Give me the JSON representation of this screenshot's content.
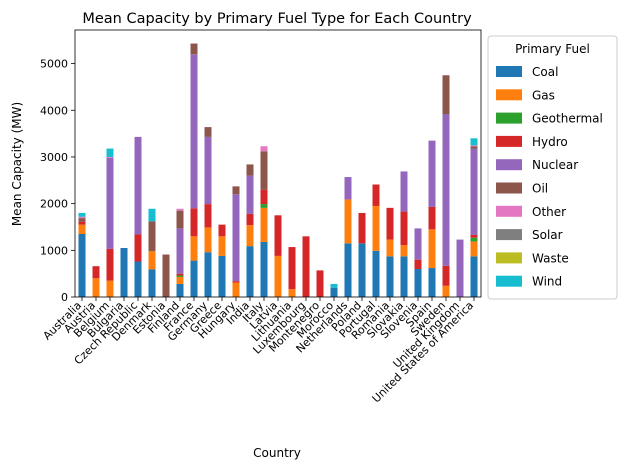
{
  "chart_data": {
    "type": "bar",
    "stacked": true,
    "title": "Mean Capacity by Primary Fuel Type for Each Country",
    "xlabel": "Country",
    "ylabel": "Mean Capacity (MW)",
    "ylim": [
      0,
      5720
    ],
    "yticks": [
      0,
      1000,
      2000,
      3000,
      4000,
      5000
    ],
    "legend_title": "Primary Fuel",
    "legend_position": "outside-right",
    "categories": [
      "Australia",
      "Austria",
      "Belgium",
      "Bulgaria",
      "Czech Republic",
      "Denmark",
      "Estonia",
      "Finland",
      "France",
      "Germany",
      "Greece",
      "Hungary",
      "India",
      "Italy",
      "Latvia",
      "Lithuania",
      "Luxembourg",
      "Montenegro",
      "Morocco",
      "Netherlands",
      "Poland",
      "Portugal",
      "Romania",
      "Slovakia",
      "Slovenia",
      "Spain",
      "Sweden",
      "United Kingdom",
      "United States of America"
    ],
    "series": [
      {
        "name": "Coal",
        "color": "#1f77b4",
        "values": [
          1350,
          0,
          0,
          1050,
          760,
          590,
          0,
          280,
          780,
          960,
          880,
          0,
          1090,
          1180,
          0,
          0,
          0,
          0,
          200,
          1150,
          1150,
          990,
          870,
          870,
          600,
          620,
          0,
          0,
          870
        ]
      },
      {
        "name": "Gas",
        "color": "#ff7f0e",
        "values": [
          200,
          400,
          350,
          0,
          0,
          390,
          0,
          150,
          520,
          530,
          420,
          310,
          450,
          730,
          880,
          170,
          0,
          0,
          0,
          940,
          0,
          960,
          360,
          240,
          0,
          830,
          240,
          0,
          320
        ]
      },
      {
        "name": "Geothermal",
        "color": "#2ca02c",
        "values": [
          0,
          0,
          0,
          0,
          0,
          0,
          0,
          30,
          0,
          0,
          0,
          0,
          0,
          80,
          0,
          0,
          0,
          0,
          0,
          0,
          0,
          0,
          0,
          0,
          0,
          0,
          0,
          0,
          80
        ]
      },
      {
        "name": "Hydro",
        "color": "#d62728",
        "values": [
          60,
          260,
          680,
          0,
          580,
          0,
          0,
          40,
          600,
          500,
          250,
          30,
          240,
          310,
          870,
          900,
          1300,
          570,
          0,
          0,
          650,
          460,
          680,
          720,
          200,
          480,
          430,
          0,
          60
        ]
      },
      {
        "name": "Nuclear",
        "color": "#9467bd",
        "values": [
          0,
          0,
          1950,
          0,
          2090,
          0,
          0,
          970,
          3300,
          1440,
          0,
          1860,
          820,
          0,
          0,
          0,
          0,
          0,
          0,
          480,
          0,
          0,
          0,
          860,
          670,
          1420,
          3250,
          1230,
          1850
        ]
      },
      {
        "name": "Oil",
        "color": "#8c564b",
        "values": [
          80,
          0,
          0,
          0,
          0,
          640,
          910,
          380,
          230,
          210,
          0,
          170,
          240,
          820,
          0,
          0,
          0,
          0,
          0,
          0,
          0,
          0,
          0,
          0,
          0,
          0,
          830,
          0,
          50
        ]
      },
      {
        "name": "Other",
        "color": "#e377c2",
        "values": [
          30,
          0,
          20,
          0,
          0,
          0,
          0,
          40,
          0,
          0,
          0,
          0,
          0,
          110,
          0,
          0,
          0,
          0,
          0,
          0,
          0,
          0,
          0,
          0,
          0,
          0,
          0,
          0,
          20
        ]
      },
      {
        "name": "Solar",
        "color": "#7f7f7f",
        "values": [
          0,
          0,
          0,
          0,
          0,
          0,
          0,
          0,
          0,
          0,
          0,
          0,
          0,
          0,
          0,
          0,
          0,
          0,
          0,
          0,
          0,
          0,
          0,
          0,
          0,
          0,
          0,
          0,
          0
        ]
      },
      {
        "name": "Waste",
        "color": "#bcbd22",
        "values": [
          0,
          0,
          0,
          0,
          0,
          0,
          0,
          0,
          0,
          0,
          0,
          0,
          0,
          0,
          0,
          0,
          0,
          0,
          0,
          0,
          0,
          0,
          0,
          0,
          0,
          0,
          0,
          0,
          0
        ]
      },
      {
        "name": "Wind",
        "color": "#17becf",
        "values": [
          80,
          0,
          180,
          0,
          0,
          270,
          0,
          0,
          0,
          0,
          0,
          0,
          0,
          0,
          0,
          0,
          0,
          0,
          80,
          0,
          0,
          0,
          0,
          0,
          0,
          0,
          0,
          0,
          150
        ]
      }
    ]
  }
}
